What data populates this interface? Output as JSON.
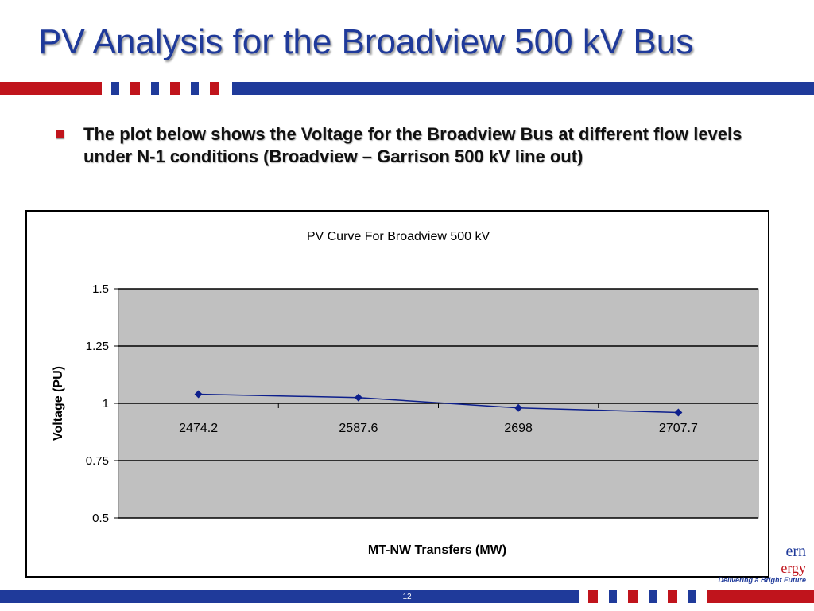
{
  "slide": {
    "title": "PV Analysis for the Broadview 500 kV Bus",
    "bullet": "The plot below shows the Voltage for the Broadview Bus at different flow levels under N-1 conditions (Broadview – Garrison 500 kV line out)",
    "page_number": "12"
  },
  "logo": {
    "line1": "ern",
    "line2": "ergy",
    "tagline": "Delivering a Bright Future"
  },
  "colors": {
    "title_blue": "#1f3a9a",
    "accent_red": "#c0141c",
    "plot_bg": "#c0c0c0",
    "series_color": "#0d1f8c"
  },
  "chart_data": {
    "type": "line",
    "title": "PV Curve For Broadview  500 kV",
    "xlabel": "MT-NW Transfers (MW)",
    "ylabel": "Voltage (PU)",
    "categories": [
      "2474.2",
      "2587.6",
      "2698",
      "2707.7"
    ],
    "series": [
      {
        "values": [
          1.04,
          1.025,
          0.98,
          0.96
        ]
      }
    ],
    "ylim": [
      0.5,
      1.5
    ],
    "yticks": [
      "0.5",
      "0.75",
      "1",
      "1.25",
      "1.5"
    ],
    "grid": true,
    "legend": "none"
  }
}
